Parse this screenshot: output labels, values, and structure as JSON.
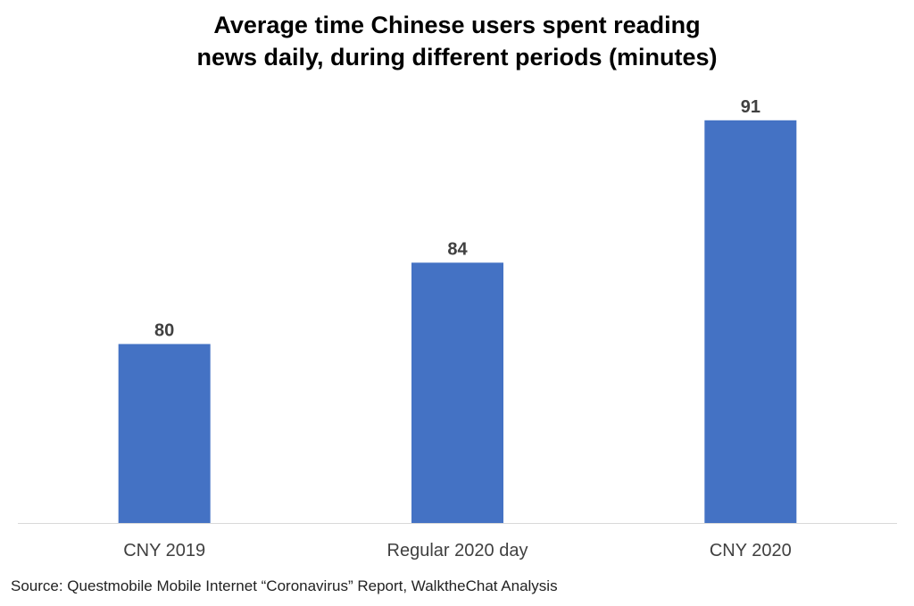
{
  "chart_data": {
    "type": "bar",
    "title_lines": [
      "Average time Chinese users spent reading",
      "news daily, during different periods (minutes)"
    ],
    "categories": [
      "CNY 2019",
      "Regular 2020 day",
      "CNY 2020"
    ],
    "values": [
      80,
      84,
      91
    ],
    "data_labels": [
      "80",
      "84",
      "91"
    ],
    "ylim": [
      71.2,
      92
    ],
    "xlabel": "",
    "ylabel": "",
    "grid": false,
    "legend": "none"
  },
  "colors": {
    "bar": "#4472C4",
    "axis": "#D9D9D9",
    "text": "#404040"
  },
  "source": "Source: Questmobile Mobile Internet “Coronavirus” Report, WalktheChat Analysis"
}
